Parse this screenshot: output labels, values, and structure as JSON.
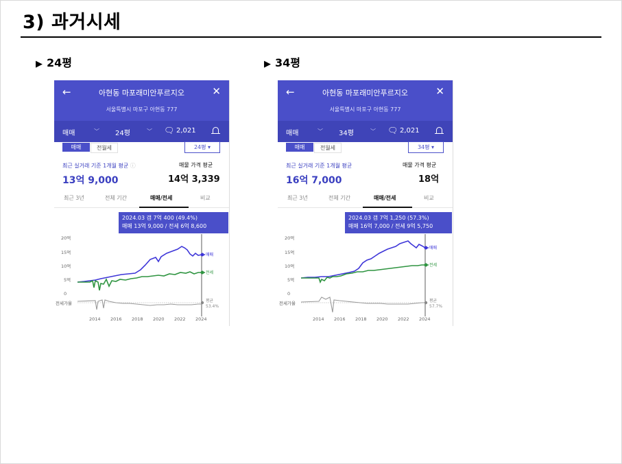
{
  "slide": {
    "title": "3) 과거시세",
    "sections": [
      {
        "label": "24평"
      },
      {
        "label": "34평"
      }
    ]
  },
  "colors": {
    "brand": "#4a4fc9",
    "sale_line": "#3d35d8",
    "jeonse_line": "#2e9440",
    "ratio_line": "#9a9a9a"
  },
  "screens": [
    {
      "apt_name": "아현동 마포래미안푸르지오",
      "address": "서울특별시 마포구 아현동 777",
      "filter_type": "매매",
      "filter_pyeong": "24평",
      "comment_count": "2,021",
      "seg_sale": "매매",
      "seg_rent": "전월세",
      "pyeong_dropdown": "24평",
      "recent_label": "최근 실거래 기준 1개월 평균",
      "recent_value": "13억 9,000",
      "listing_label": "매물 가격 평균",
      "listing_value": "14억 3,339",
      "tabs": [
        "최근 3년",
        "전체 기간",
        "매매/전세",
        "비교"
      ],
      "tooltip_line1": "2024.03  갭 7억 400 (49.4%)",
      "tooltip_line2": "매매 13억 9,000 / 전세 6억 8,600",
      "y_ticks": [
        "20억",
        "15억",
        "10억",
        "5억",
        "0"
      ],
      "x_ticks": [
        "2014",
        "2016",
        "2018",
        "2020",
        "2022",
        "2024"
      ],
      "ratio_label": "전세가율",
      "legend_sale": "매매",
      "legend_jeonse": "전세",
      "legend_avg": "평균",
      "avg_ratio": "53.4%"
    },
    {
      "apt_name": "아현동 마포래미안푸르지오",
      "address": "서울특별시 마포구 아현동 777",
      "filter_type": "매매",
      "filter_pyeong": "34평",
      "comment_count": "2,021",
      "seg_sale": "매매",
      "seg_rent": "전월세",
      "pyeong_dropdown": "34평",
      "recent_label": "최근 실거래 기준 1개월 평균",
      "recent_value": "16억 7,000",
      "listing_label": "매물 가격 평균",
      "listing_value": "18억",
      "tabs": [
        "최근 3년",
        "전체 기간",
        "매매/전세",
        "비교"
      ],
      "tooltip_line1": "2024.03  갭 7억 1,250 (57.3%)",
      "tooltip_line2": "매매 16억 7,000 / 전세 9억 5,750",
      "y_ticks": [
        "20억",
        "15억",
        "10억",
        "5억",
        "0"
      ],
      "x_ticks": [
        "2014",
        "2016",
        "2018",
        "2020",
        "2022",
        "2024"
      ],
      "ratio_label": "전세가율",
      "legend_sale": "매매",
      "legend_jeonse": "전세",
      "legend_avg": "평균",
      "avg_ratio": "57.7%"
    }
  ]
}
